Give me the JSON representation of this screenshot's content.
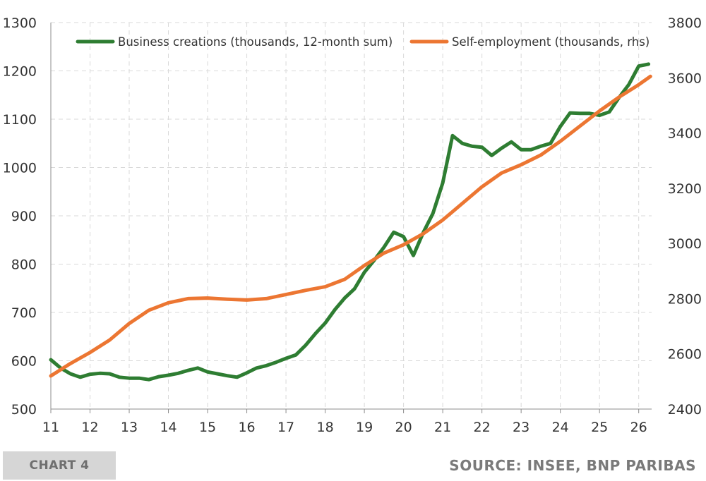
{
  "chart_data": {
    "type": "line",
    "x_tick_labels": [
      "11",
      "12",
      "13",
      "14",
      "15",
      "16",
      "17",
      "18",
      "19",
      "20",
      "21",
      "22",
      "23",
      "24",
      "25",
      "26"
    ],
    "xlim": [
      2011,
      2026.33
    ],
    "y_left": {
      "ticks": [
        500,
        600,
        700,
        800,
        900,
        1000,
        1100,
        1200,
        1300
      ],
      "lim": [
        500,
        1300
      ]
    },
    "y_right": {
      "ticks": [
        2400,
        2600,
        2800,
        3000,
        3200,
        3400,
        3600,
        3800
      ],
      "lim": [
        2400,
        3800
      ]
    },
    "grid": true,
    "legend_placement": "top",
    "series": [
      {
        "name": "Business creations (thousands, 12-month sum)",
        "axis": "left",
        "color": "#2e7d32",
        "points": [
          [
            2011.0,
            602
          ],
          [
            2011.25,
            585
          ],
          [
            2011.5,
            573
          ],
          [
            2011.75,
            566
          ],
          [
            2012.0,
            572
          ],
          [
            2012.25,
            574
          ],
          [
            2012.5,
            573
          ],
          [
            2012.75,
            566
          ],
          [
            2013.0,
            564
          ],
          [
            2013.25,
            564
          ],
          [
            2013.5,
            561
          ],
          [
            2013.75,
            567
          ],
          [
            2014.0,
            570
          ],
          [
            2014.25,
            574
          ],
          [
            2014.5,
            580
          ],
          [
            2014.75,
            585
          ],
          [
            2015.0,
            577
          ],
          [
            2015.25,
            573
          ],
          [
            2015.5,
            569
          ],
          [
            2015.75,
            566
          ],
          [
            2016.0,
            575
          ],
          [
            2016.25,
            585
          ],
          [
            2016.5,
            590
          ],
          [
            2016.75,
            597
          ],
          [
            2017.0,
            605
          ],
          [
            2017.25,
            612
          ],
          [
            2017.5,
            632
          ],
          [
            2017.75,
            656
          ],
          [
            2018.0,
            678
          ],
          [
            2018.25,
            706
          ],
          [
            2018.5,
            730
          ],
          [
            2018.75,
            749
          ],
          [
            2019.0,
            783
          ],
          [
            2019.25,
            808
          ],
          [
            2019.5,
            835
          ],
          [
            2019.75,
            866
          ],
          [
            2020.0,
            857
          ],
          [
            2020.25,
            818
          ],
          [
            2020.5,
            865
          ],
          [
            2020.75,
            905
          ],
          [
            2021.0,
            968
          ],
          [
            2021.25,
            1066
          ],
          [
            2021.5,
            1050
          ],
          [
            2021.75,
            1044
          ],
          [
            2022.0,
            1042
          ],
          [
            2022.25,
            1025
          ],
          [
            2022.5,
            1040
          ],
          [
            2022.75,
            1053
          ],
          [
            2023.0,
            1037
          ],
          [
            2023.25,
            1037
          ],
          [
            2023.5,
            1044
          ],
          [
            2023.75,
            1050
          ],
          [
            2024.0,
            1085
          ],
          [
            2024.25,
            1113
          ],
          [
            2024.5,
            1112
          ],
          [
            2024.75,
            1112
          ],
          [
            2025.0,
            1108
          ],
          [
            2025.25,
            1115
          ],
          [
            2025.5,
            1145
          ],
          [
            2025.75,
            1172
          ],
          [
            2026.0,
            1210
          ],
          [
            2026.25,
            1214
          ]
        ]
      },
      {
        "name": "Self-employment (thousands, rhs)",
        "axis": "right",
        "color": "#ec7632",
        "points": [
          [
            2011.0,
            2520
          ],
          [
            2011.5,
            2565
          ],
          [
            2012.0,
            2605
          ],
          [
            2012.5,
            2650
          ],
          [
            2013.0,
            2710
          ],
          [
            2013.5,
            2758
          ],
          [
            2014.0,
            2785
          ],
          [
            2014.5,
            2800
          ],
          [
            2015.0,
            2802
          ],
          [
            2015.5,
            2798
          ],
          [
            2016.0,
            2795
          ],
          [
            2016.5,
            2800
          ],
          [
            2017.0,
            2815
          ],
          [
            2017.5,
            2830
          ],
          [
            2018.0,
            2843
          ],
          [
            2018.5,
            2870
          ],
          [
            2019.0,
            2920
          ],
          [
            2019.5,
            2965
          ],
          [
            2020.0,
            2995
          ],
          [
            2020.5,
            3035
          ],
          [
            2021.0,
            3085
          ],
          [
            2021.5,
            3145
          ],
          [
            2022.0,
            3205
          ],
          [
            2022.5,
            3255
          ],
          [
            2023.0,
            3285
          ],
          [
            2023.5,
            3320
          ],
          [
            2024.0,
            3370
          ],
          [
            2024.5,
            3425
          ],
          [
            2025.0,
            3480
          ],
          [
            2025.5,
            3530
          ],
          [
            2026.0,
            3575
          ],
          [
            2026.3,
            3605
          ]
        ]
      }
    ]
  },
  "footer": {
    "chart_label": "CHART 4",
    "source": "SOURCE: INSEE, BNP PARIBAS"
  }
}
